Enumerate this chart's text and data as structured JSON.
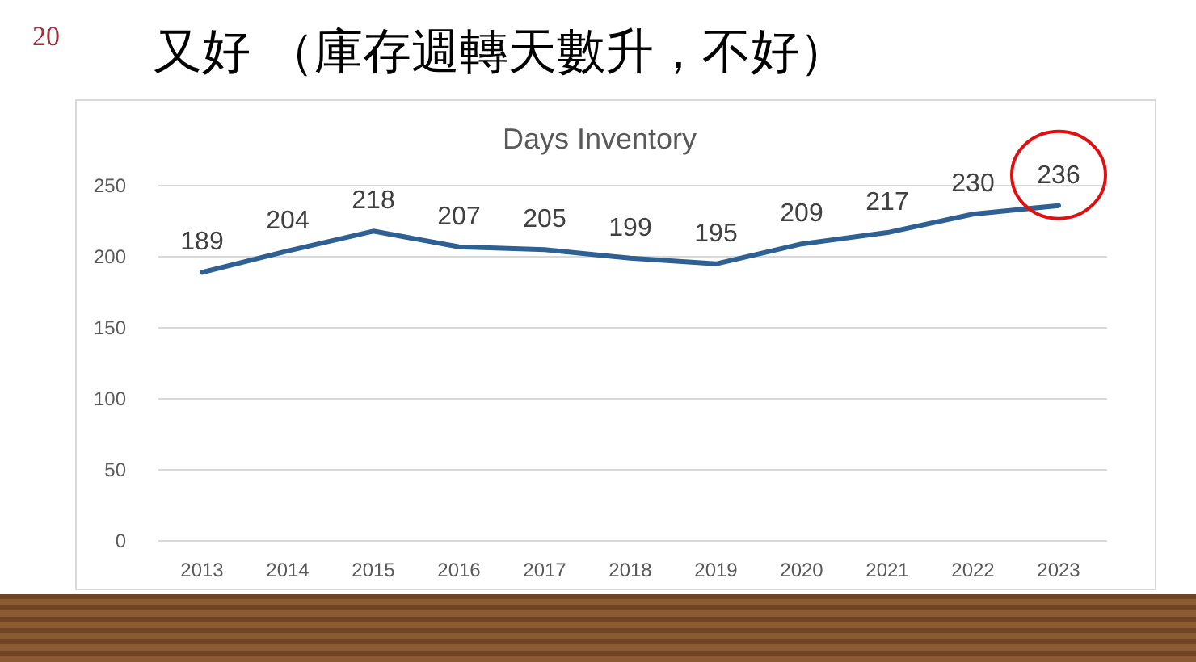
{
  "chart_data": {
    "type": "line",
    "title": "Days Inventory",
    "annotations": [
      "20",
      "又好 （庫存週轉天數升，不好）"
    ],
    "categories": [
      "2013",
      "2014",
      "2015",
      "2016",
      "2017",
      "2018",
      "2019",
      "2020",
      "2021",
      "2022",
      "2023"
    ],
    "values": [
      189,
      204,
      218,
      207,
      205,
      199,
      195,
      209,
      217,
      230,
      236
    ],
    "color": "#2e6094",
    "ylim": [
      0,
      250
    ],
    "yticks": [
      0,
      50,
      100,
      150,
      200,
      250
    ],
    "grid": "y",
    "data_labels": true,
    "marker": "none"
  }
}
